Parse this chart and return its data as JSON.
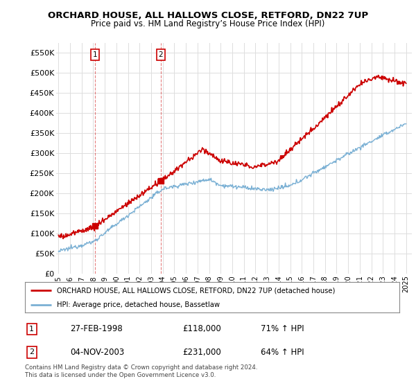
{
  "title": "ORCHARD HOUSE, ALL HALLOWS CLOSE, RETFORD, DN22 7UP",
  "subtitle": "Price paid vs. HM Land Registry’s House Price Index (HPI)",
  "legend_line1": "ORCHARD HOUSE, ALL HALLOWS CLOSE, RETFORD, DN22 7UP (detached house)",
  "legend_line2": "HPI: Average price, detached house, Bassetlaw",
  "purchase1_date": "27-FEB-1998",
  "purchase1_price": "£118,000",
  "purchase1_hpi": "71% ↑ HPI",
  "purchase2_date": "04-NOV-2003",
  "purchase2_price": "£231,000",
  "purchase2_hpi": "64% ↑ HPI",
  "footer": "Contains HM Land Registry data © Crown copyright and database right 2024.\nThis data is licensed under the Open Government Licence v3.0.",
  "ylim": [
    0,
    575000
  ],
  "yticks": [
    0,
    50000,
    100000,
    150000,
    200000,
    250000,
    300000,
    350000,
    400000,
    450000,
    500000,
    550000
  ],
  "red_color": "#cc0000",
  "blue_color": "#7ab0d4",
  "grid_color": "#dddddd",
  "purchase1_x": 1998.15,
  "purchase1_y": 118000,
  "purchase2_x": 2003.84,
  "purchase2_y": 231000,
  "xlim_left": 1994.8,
  "xlim_right": 2025.5
}
